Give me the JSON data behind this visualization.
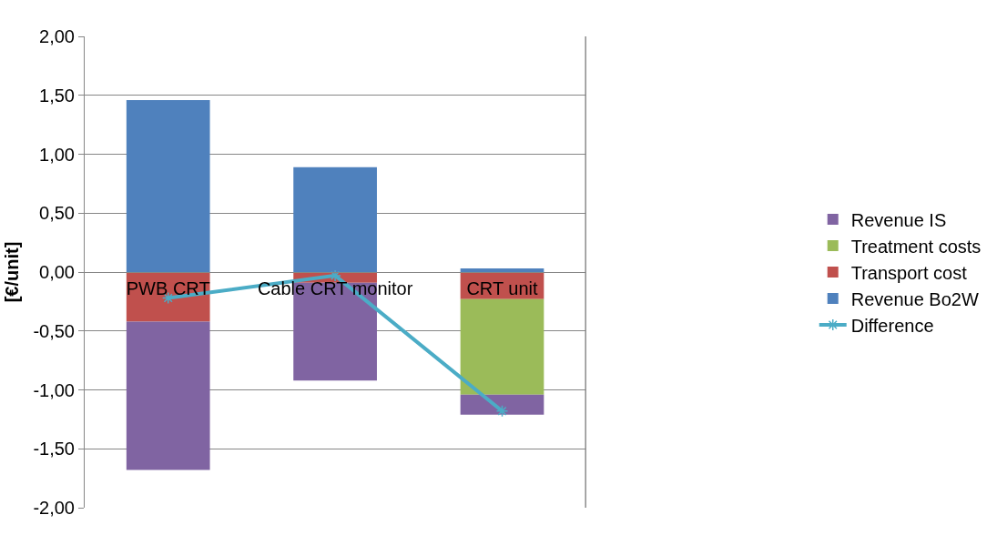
{
  "chart_data": {
    "type": "bar",
    "stacked": true,
    "ylabel": "[€/unit]",
    "categories": [
      "PWB CRT",
      "Cable CRT monitor",
      "CRT unit"
    ],
    "series": [
      {
        "name": "Revenue Bo2W",
        "color": "#4f81bd",
        "values": [
          1.46,
          0.89,
          0.03
        ]
      },
      {
        "name": "Transport cost",
        "color": "#c0504d",
        "values": [
          -0.42,
          -0.09,
          -0.23
        ]
      },
      {
        "name": "Treatment costs",
        "color": "#9bbb59",
        "values": [
          0,
          0,
          -0.81
        ]
      },
      {
        "name": "Revenue IS",
        "color": "#8064a2",
        "values": [
          -1.26,
          -0.83,
          -0.17
        ]
      },
      {
        "name": "Difference",
        "type": "line",
        "color": "#4bacc6",
        "values": [
          -0.22,
          -0.03,
          -1.18
        ],
        "marker": "cross"
      }
    ],
    "ylim": [
      -2,
      2
    ],
    "yticks": [
      {
        "value": -2,
        "label": "-2,00"
      },
      {
        "value": -1.5,
        "label": "-1,50"
      },
      {
        "value": -1,
        "label": "-1,00"
      },
      {
        "value": -0.5,
        "label": "-0,50"
      },
      {
        "value": 0,
        "label": "0,00"
      },
      {
        "value": 0.5,
        "label": "0,50"
      },
      {
        "value": 1,
        "label": "1,00"
      },
      {
        "value": 1.5,
        "label": "1,50"
      },
      {
        "value": 2,
        "label": "2,00"
      }
    ],
    "grid": "y",
    "legend": "right"
  }
}
